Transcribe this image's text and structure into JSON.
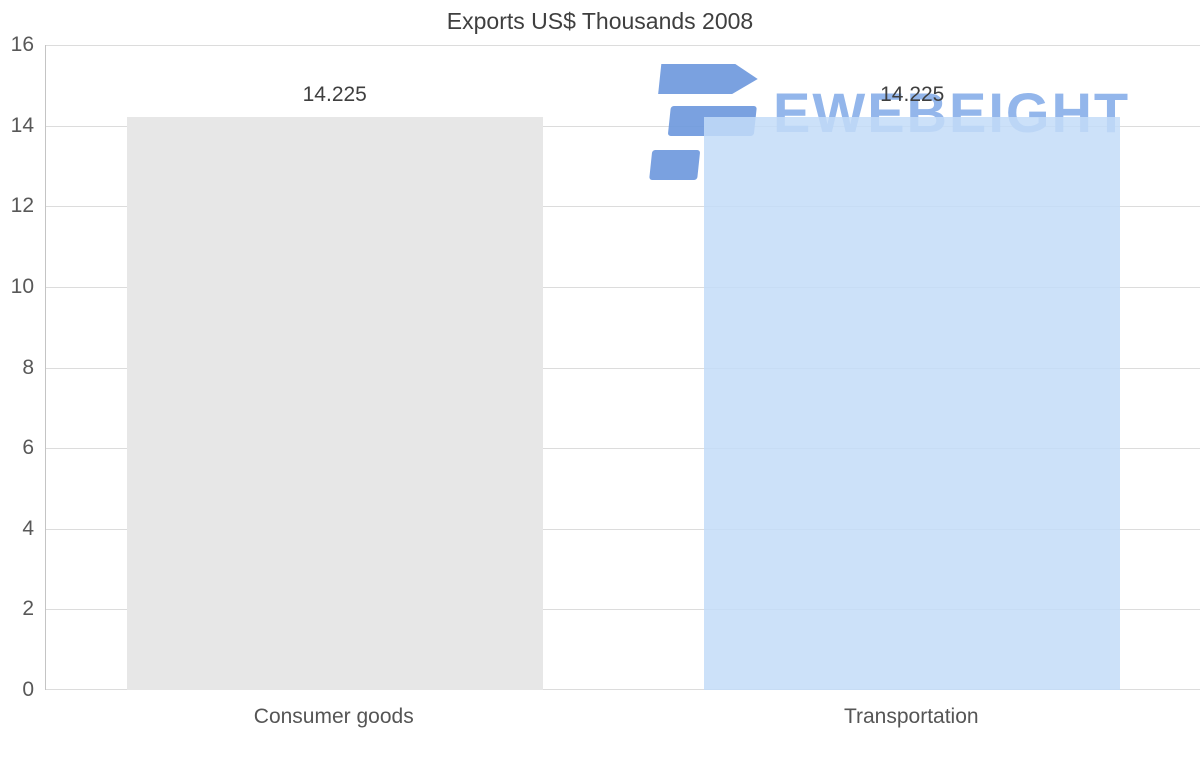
{
  "chart_data": {
    "type": "bar",
    "title": "Exports US$ Thousands 2008",
    "categories": [
      "Consumer goods",
      "Transportation"
    ],
    "values": [
      14.225,
      14.225
    ],
    "value_labels": [
      "14.225",
      "14.225"
    ],
    "ylim": [
      0,
      16
    ],
    "yticks": [
      0,
      2,
      4,
      6,
      8,
      10,
      12,
      14,
      16
    ],
    "bar_colors": [
      "#e7e7e7",
      "rgba(195,220,248,0.85)"
    ],
    "grid": true,
    "legend": "none",
    "xlabel": "",
    "ylabel": ""
  },
  "watermark": {
    "text": "EWEBEIGHT",
    "color": "#8ab0ea",
    "icon_color": "#6f9ade"
  }
}
